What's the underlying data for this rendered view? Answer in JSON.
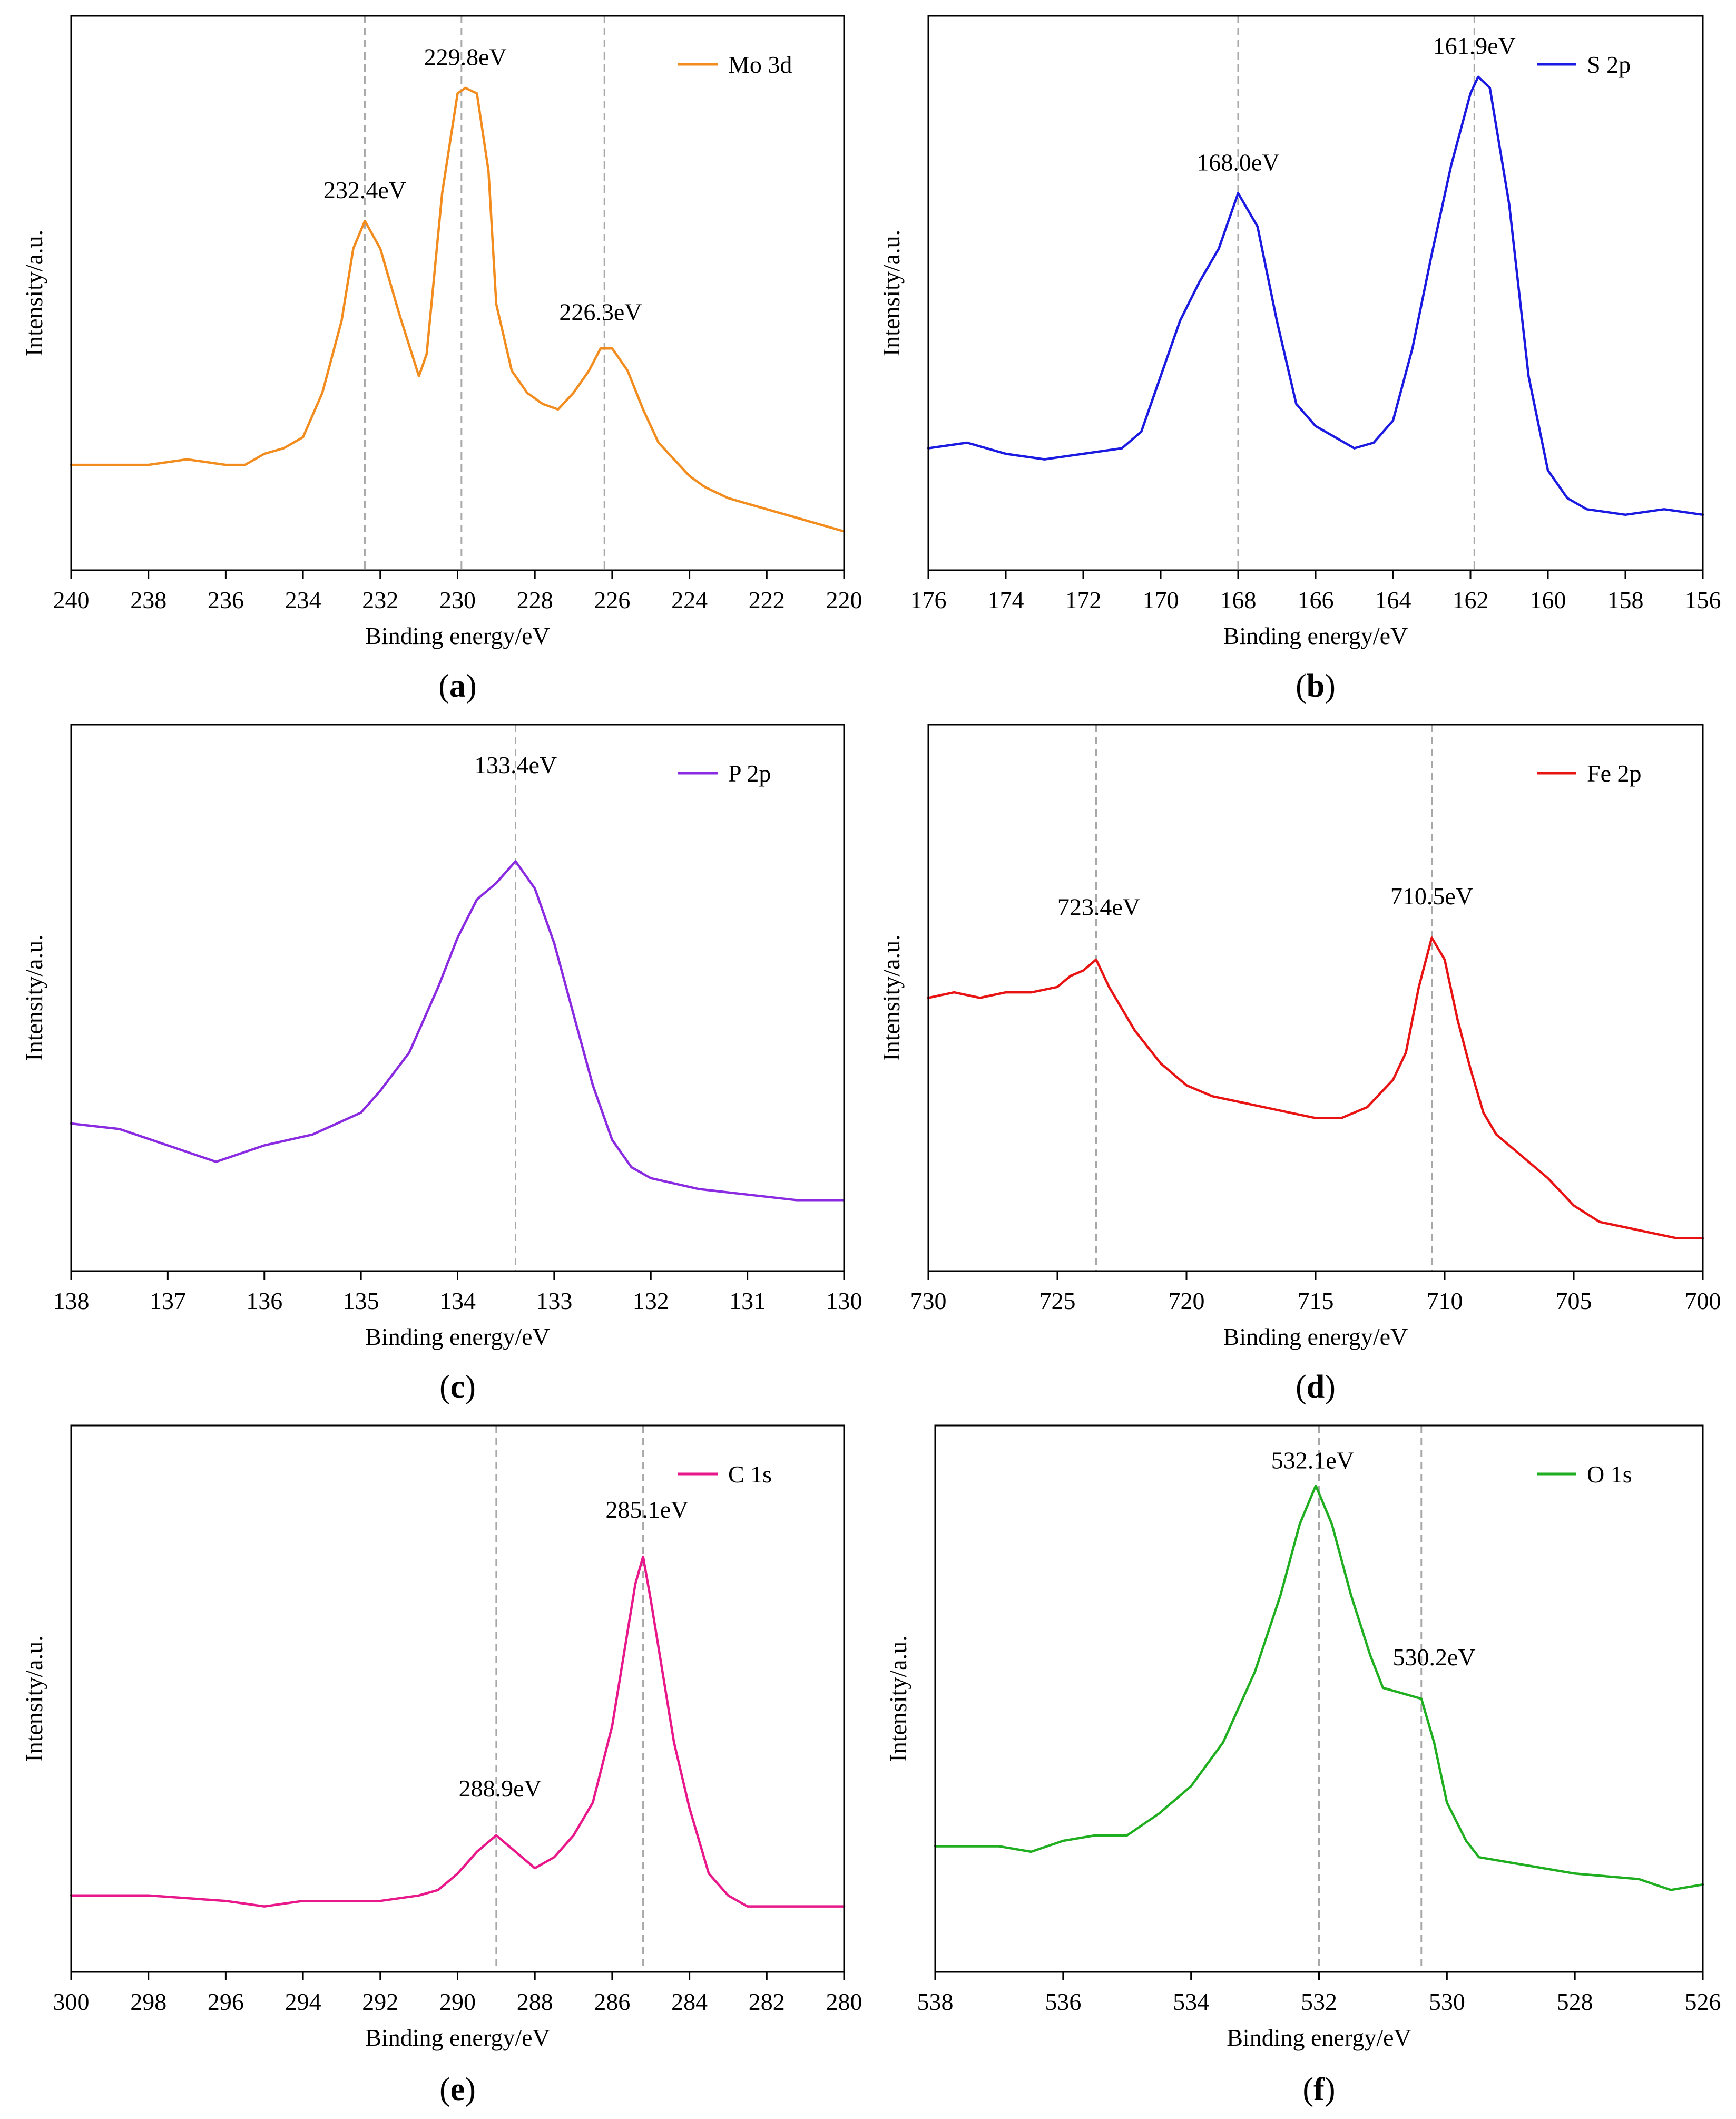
{
  "figure": {
    "panels": [
      {
        "key": "a",
        "label_text": "(a)",
        "label_letter": "a"
      },
      {
        "key": "b",
        "label_text": "(b)",
        "label_letter": "b"
      },
      {
        "key": "c",
        "label_text": "(c)",
        "label_letter": "c"
      },
      {
        "key": "d",
        "label_text": "(d)",
        "label_letter": "d"
      },
      {
        "key": "e",
        "label_text": "(e)",
        "label_letter": "e"
      },
      {
        "key": "f",
        "label_text": "(f)",
        "label_letter": "f"
      }
    ]
  },
  "chart_data": [
    {
      "panel": "a",
      "type": "line",
      "title": "",
      "xlabel": "Binding energy/eV",
      "ylabel": "Intensity/a.u.",
      "xlim": [
        240,
        220
      ],
      "ylim": [
        0,
        100
      ],
      "x_ticks": [
        240,
        238,
        236,
        234,
        232,
        230,
        228,
        226,
        224,
        222,
        220
      ],
      "color": "#f28c1e",
      "legend": "Mo 3d",
      "legend_position": "top-right",
      "reference_lines": [
        232.4,
        229.9,
        226.2
      ],
      "annotations": [
        {
          "text": "232.4eV",
          "x": 232.4,
          "y": 65
        },
        {
          "text": "229.8eV",
          "x": 229.8,
          "y": 89
        },
        {
          "text": "226.3eV",
          "x": 226.3,
          "y": 43
        }
      ],
      "series": [
        {
          "name": "Mo 3d",
          "x": [
            240,
            239,
            238,
            237,
            236,
            235.5,
            235,
            234.5,
            234,
            233.5,
            233,
            232.7,
            232.4,
            232,
            231.5,
            231,
            230.8,
            230.4,
            230,
            229.8,
            229.5,
            229.2,
            229,
            228.6,
            228.2,
            227.8,
            227.4,
            227,
            226.6,
            226.3,
            226,
            225.6,
            225.2,
            224.8,
            224.4,
            224,
            223.6,
            223,
            222.5,
            222,
            221.5,
            221,
            220.5,
            220
          ],
          "y": [
            19,
            19,
            19,
            20,
            19,
            19,
            21,
            22,
            24,
            32,
            45,
            58,
            63,
            58,
            46,
            35,
            39,
            68,
            86,
            87,
            86,
            72,
            48,
            36,
            32,
            30,
            29,
            32,
            36,
            40,
            40,
            36,
            29,
            23,
            20,
            17,
            15,
            13,
            12,
            11,
            10,
            9,
            8,
            7
          ]
        }
      ]
    },
    {
      "panel": "b",
      "type": "line",
      "title": "",
      "xlabel": "Binding energy/eV",
      "ylabel": "Intensity/a.u.",
      "xlim": [
        176,
        156
      ],
      "ylim": [
        0,
        100
      ],
      "x_ticks": [
        176,
        174,
        172,
        170,
        168,
        166,
        164,
        162,
        160,
        158,
        156
      ],
      "color": "#1a1ae0",
      "legend": "S 2p",
      "legend_position": "top-right",
      "reference_lines": [
        168.0,
        161.9
      ],
      "annotations": [
        {
          "text": "168.0eV",
          "x": 168.0,
          "y": 70
        },
        {
          "text": "161.9eV",
          "x": 161.9,
          "y": 91
        }
      ],
      "series": [
        {
          "name": "S 2p",
          "x": [
            176,
            175,
            174,
            173,
            172,
            171,
            170.5,
            170,
            169.5,
            169,
            168.5,
            168,
            167.5,
            167,
            166.5,
            166,
            165.5,
            165,
            164.5,
            164,
            163.5,
            163,
            162.5,
            162,
            161.8,
            161.5,
            161,
            160.5,
            160,
            159.5,
            159,
            158,
            157,
            156
          ],
          "y": [
            22,
            23,
            21,
            20,
            21,
            22,
            25,
            35,
            45,
            52,
            58,
            68,
            62,
            45,
            30,
            26,
            24,
            22,
            23,
            27,
            40,
            57,
            73,
            86,
            89,
            87,
            66,
            35,
            18,
            13,
            11,
            10,
            11,
            10
          ]
        }
      ]
    },
    {
      "panel": "c",
      "type": "line",
      "title": "",
      "xlabel": "Binding energy/eV",
      "ylabel": "Intensity/a.u.",
      "xlim": [
        138,
        130
      ],
      "ylim": [
        0,
        100
      ],
      "x_ticks": [
        138,
        137,
        136,
        135,
        134,
        133,
        132,
        131,
        130
      ],
      "color": "#8a2be2",
      "legend": "P 2p",
      "legend_position": "top-right",
      "reference_lines": [
        133.4
      ],
      "annotations": [
        {
          "text": "133.4eV",
          "x": 133.4,
          "y": 89
        }
      ],
      "series": [
        {
          "name": "P 2p",
          "x": [
            138,
            137.5,
            137,
            136.5,
            136,
            135.5,
            135,
            134.8,
            134.5,
            134.2,
            134,
            133.8,
            133.6,
            133.4,
            133.2,
            133,
            132.8,
            132.6,
            132.4,
            132.2,
            132,
            131.5,
            131,
            130.5,
            130
          ],
          "y": [
            27,
            26,
            23,
            20,
            23,
            25,
            29,
            33,
            40,
            52,
            61,
            68,
            71,
            75,
            70,
            60,
            47,
            34,
            24,
            19,
            17,
            15,
            14,
            13,
            13
          ]
        }
      ]
    },
    {
      "panel": "d",
      "type": "line",
      "title": "",
      "xlabel": "Binding energy/eV",
      "ylabel": "Intensity/a.u.",
      "xlim": [
        730,
        700
      ],
      "ylim": [
        0,
        100
      ],
      "x_ticks": [
        730,
        725,
        720,
        715,
        710,
        705,
        700
      ],
      "color": "#e81414",
      "legend": "Fe 2p",
      "legend_position": "top-right",
      "reference_lines": [
        723.5,
        710.5
      ],
      "annotations": [
        {
          "text": "723.4eV",
          "x": 723.4,
          "y": 63
        },
        {
          "text": "710.5eV",
          "x": 710.5,
          "y": 65
        }
      ],
      "series": [
        {
          "name": "Fe 2p",
          "x": [
            730,
            729,
            728,
            727,
            726,
            725,
            724.5,
            724,
            723.5,
            723,
            722,
            721,
            720,
            719,
            718,
            717,
            716,
            715,
            714,
            713,
            712,
            711.5,
            711,
            710.5,
            710,
            709.5,
            709,
            708.5,
            708,
            707,
            706,
            705,
            704,
            703,
            702,
            701,
            700
          ],
          "y": [
            50,
            51,
            50,
            51,
            51,
            52,
            54,
            55,
            57,
            52,
            44,
            38,
            34,
            32,
            31,
            30,
            29,
            28,
            28,
            30,
            35,
            40,
            52,
            61,
            57,
            46,
            37,
            29,
            25,
            21,
            17,
            12,
            9,
            8,
            7,
            6,
            6
          ]
        }
      ]
    },
    {
      "panel": "e",
      "type": "line",
      "title": "",
      "xlabel": "Binding energy/eV",
      "ylabel": "Intensity/a.u.",
      "xlim": [
        300,
        280
      ],
      "ylim": [
        0,
        100
      ],
      "x_ticks": [
        300,
        298,
        296,
        294,
        292,
        290,
        288,
        286,
        284,
        282,
        280
      ],
      "color": "#e8178a",
      "legend": "C 1s",
      "legend_position": "top-right",
      "reference_lines": [
        289.0,
        285.2
      ],
      "annotations": [
        {
          "text": "288.9eV",
          "x": 288.9,
          "y": 30
        },
        {
          "text": "285.1eV",
          "x": 285.1,
          "y": 81
        }
      ],
      "series": [
        {
          "name": "C 1s",
          "x": [
            300,
            298,
            296,
            295,
            294,
            292,
            291,
            290.5,
            290,
            289.5,
            289,
            288.5,
            288,
            287.5,
            287,
            286.5,
            286,
            285.7,
            285.4,
            285.2,
            285,
            284.7,
            284.4,
            284,
            283.5,
            283,
            282.5,
            282,
            281,
            280
          ],
          "y": [
            14,
            14,
            13,
            12,
            13,
            13,
            14,
            15,
            18,
            22,
            25,
            22,
            19,
            21,
            25,
            31,
            45,
            58,
            71,
            76,
            68,
            55,
            42,
            30,
            18,
            14,
            12,
            12,
            12,
            12
          ]
        }
      ]
    },
    {
      "panel": "f",
      "type": "line",
      "title": "",
      "xlabel": "Binding energy/eV",
      "ylabel": "Intensity/a.u.",
      "xlim": [
        538,
        526
      ],
      "ylim": [
        0,
        100
      ],
      "x_ticks": [
        538,
        536,
        534,
        532,
        530,
        528,
        526
      ],
      "color": "#1fae1f",
      "legend": "O 1s",
      "legend_position": "top-right",
      "reference_lines": [
        532.0,
        530.4
      ],
      "annotations": [
        {
          "text": "532.1eV",
          "x": 532.1,
          "y": 90
        },
        {
          "text": "530.2eV",
          "x": 530.2,
          "y": 54
        }
      ],
      "series": [
        {
          "name": "O 1s",
          "x": [
            538,
            537,
            536.5,
            536,
            535.5,
            535,
            534.5,
            534,
            533.5,
            533,
            532.6,
            532.3,
            532.05,
            531.8,
            531.5,
            531.2,
            531,
            530.7,
            530.4,
            530.2,
            530,
            529.7,
            529.5,
            529,
            528,
            527,
            526.5,
            526
          ],
          "y": [
            23,
            23,
            22,
            24,
            25,
            25,
            29,
            34,
            42,
            55,
            69,
            82,
            89,
            82,
            69,
            58,
            52,
            51,
            50,
            42,
            31,
            24,
            21,
            20,
            18,
            17,
            15,
            16
          ]
        }
      ]
    }
  ]
}
